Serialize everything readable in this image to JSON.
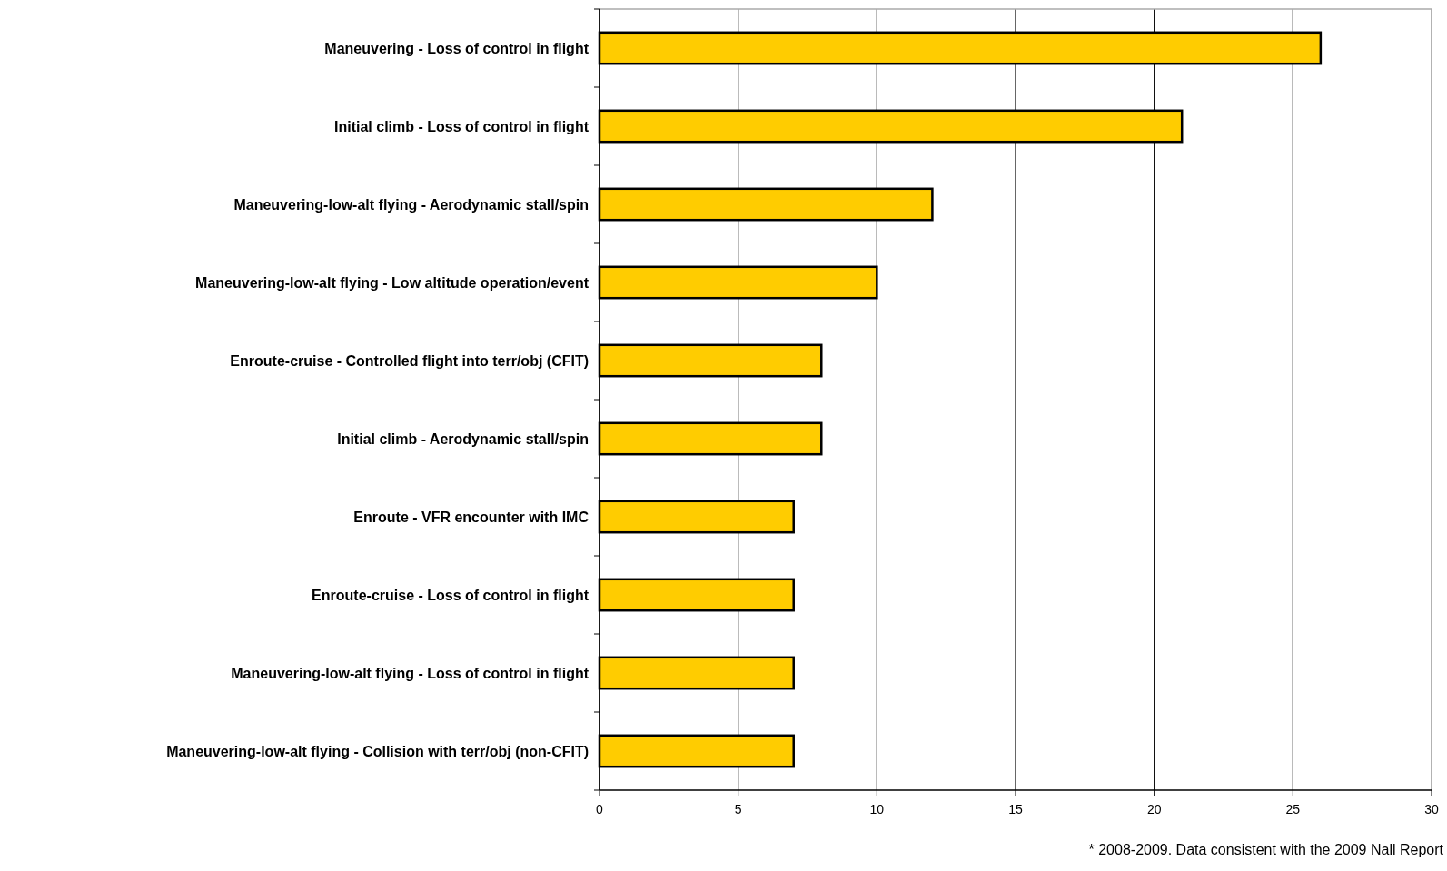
{
  "chart_data": {
    "type": "bar",
    "orientation": "horizontal",
    "categories": [
      "Maneuvering - Loss of control in flight",
      "Initial climb - Loss of control in flight",
      "Maneuvering-low-alt flying - Aerodynamic stall/spin",
      "Maneuvering-low-alt flying - Low altitude operation/event",
      "Enroute-cruise - Controlled flight into terr/obj (CFIT)",
      "Initial climb - Aerodynamic stall/spin",
      "Enroute - VFR encounter with IMC",
      "Enroute-cruise - Loss of control in flight",
      "Maneuvering-low-alt flying - Loss of control in flight",
      "Maneuvering-low-alt flying - Collision with terr/obj (non-CFIT)"
    ],
    "values": [
      26,
      21,
      12,
      10,
      8,
      8,
      7,
      7,
      7,
      7
    ],
    "color": "#ffcc00",
    "xlim": [
      0,
      30
    ],
    "xticks": [
      0,
      5,
      10,
      15,
      20,
      25,
      30
    ],
    "grid": "x",
    "annotations": [
      "* 2008-2009. Data consistent with the 2009 Nall Report"
    ]
  }
}
